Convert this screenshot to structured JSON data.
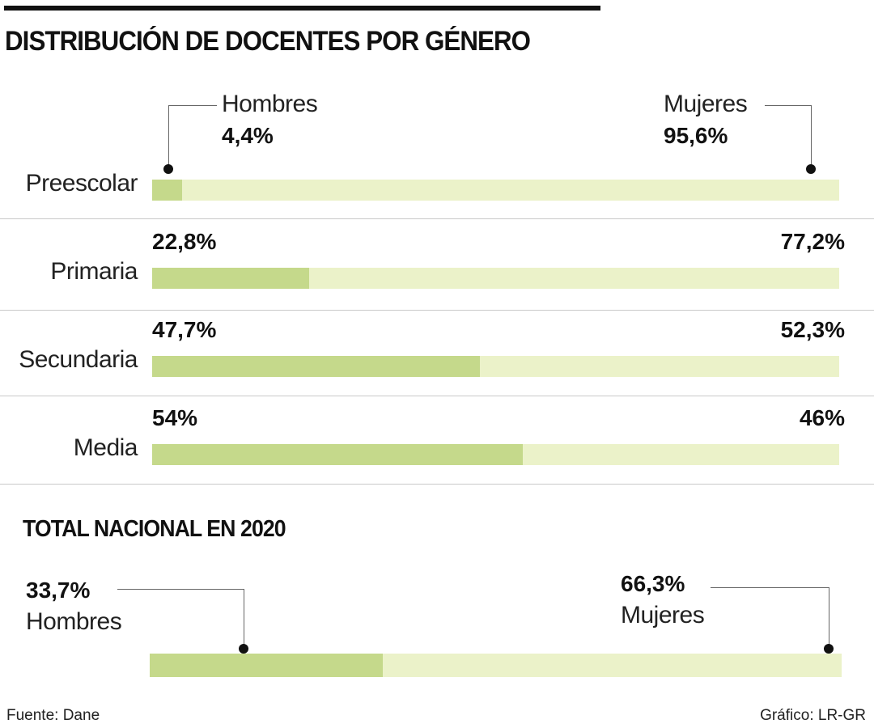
{
  "title": "DISTRIBUCIÓN DE DOCENTES POR GÉNERO",
  "colors": {
    "hombres": "#c5d98b",
    "mujeres": "#ebf2c9"
  },
  "legend": {
    "hombres": "Hombres",
    "mujeres": "Mujeres"
  },
  "chart_data": [
    {
      "type": "bar",
      "stacked": true,
      "orientation": "horizontal",
      "title": "DISTRIBUCIÓN DE DOCENTES POR GÉNERO",
      "categories": [
        "Preescolar",
        "Primaria",
        "Secundaria",
        "Media"
      ],
      "series": [
        {
          "name": "Hombres",
          "values": [
            4.4,
            22.8,
            47.7,
            54
          ],
          "labels": [
            "4,4%",
            "22,8%",
            "47,7%",
            "54%"
          ],
          "color": "#c5d98b"
        },
        {
          "name": "Mujeres",
          "values": [
            95.6,
            77.2,
            52.3,
            46
          ],
          "labels": [
            "95,6%",
            "77,2%",
            "52,3%",
            "46%"
          ],
          "color": "#ebf2c9"
        }
      ],
      "xlim": [
        0,
        100
      ]
    },
    {
      "type": "bar",
      "stacked": true,
      "orientation": "horizontal",
      "title": "TOTAL NACIONAL EN 2020",
      "series": [
        {
          "name": "Hombres",
          "values": [
            33.7
          ],
          "labels": [
            "33,7%"
          ],
          "color": "#c5d98b"
        },
        {
          "name": "Mujeres",
          "values": [
            66.3
          ],
          "labels": [
            "66,3%"
          ],
          "color": "#ebf2c9"
        }
      ],
      "xlim": [
        0,
        100
      ]
    }
  ],
  "footer": {
    "source": "Fuente: Dane",
    "credit": "Gráfico: LR-GR"
  }
}
